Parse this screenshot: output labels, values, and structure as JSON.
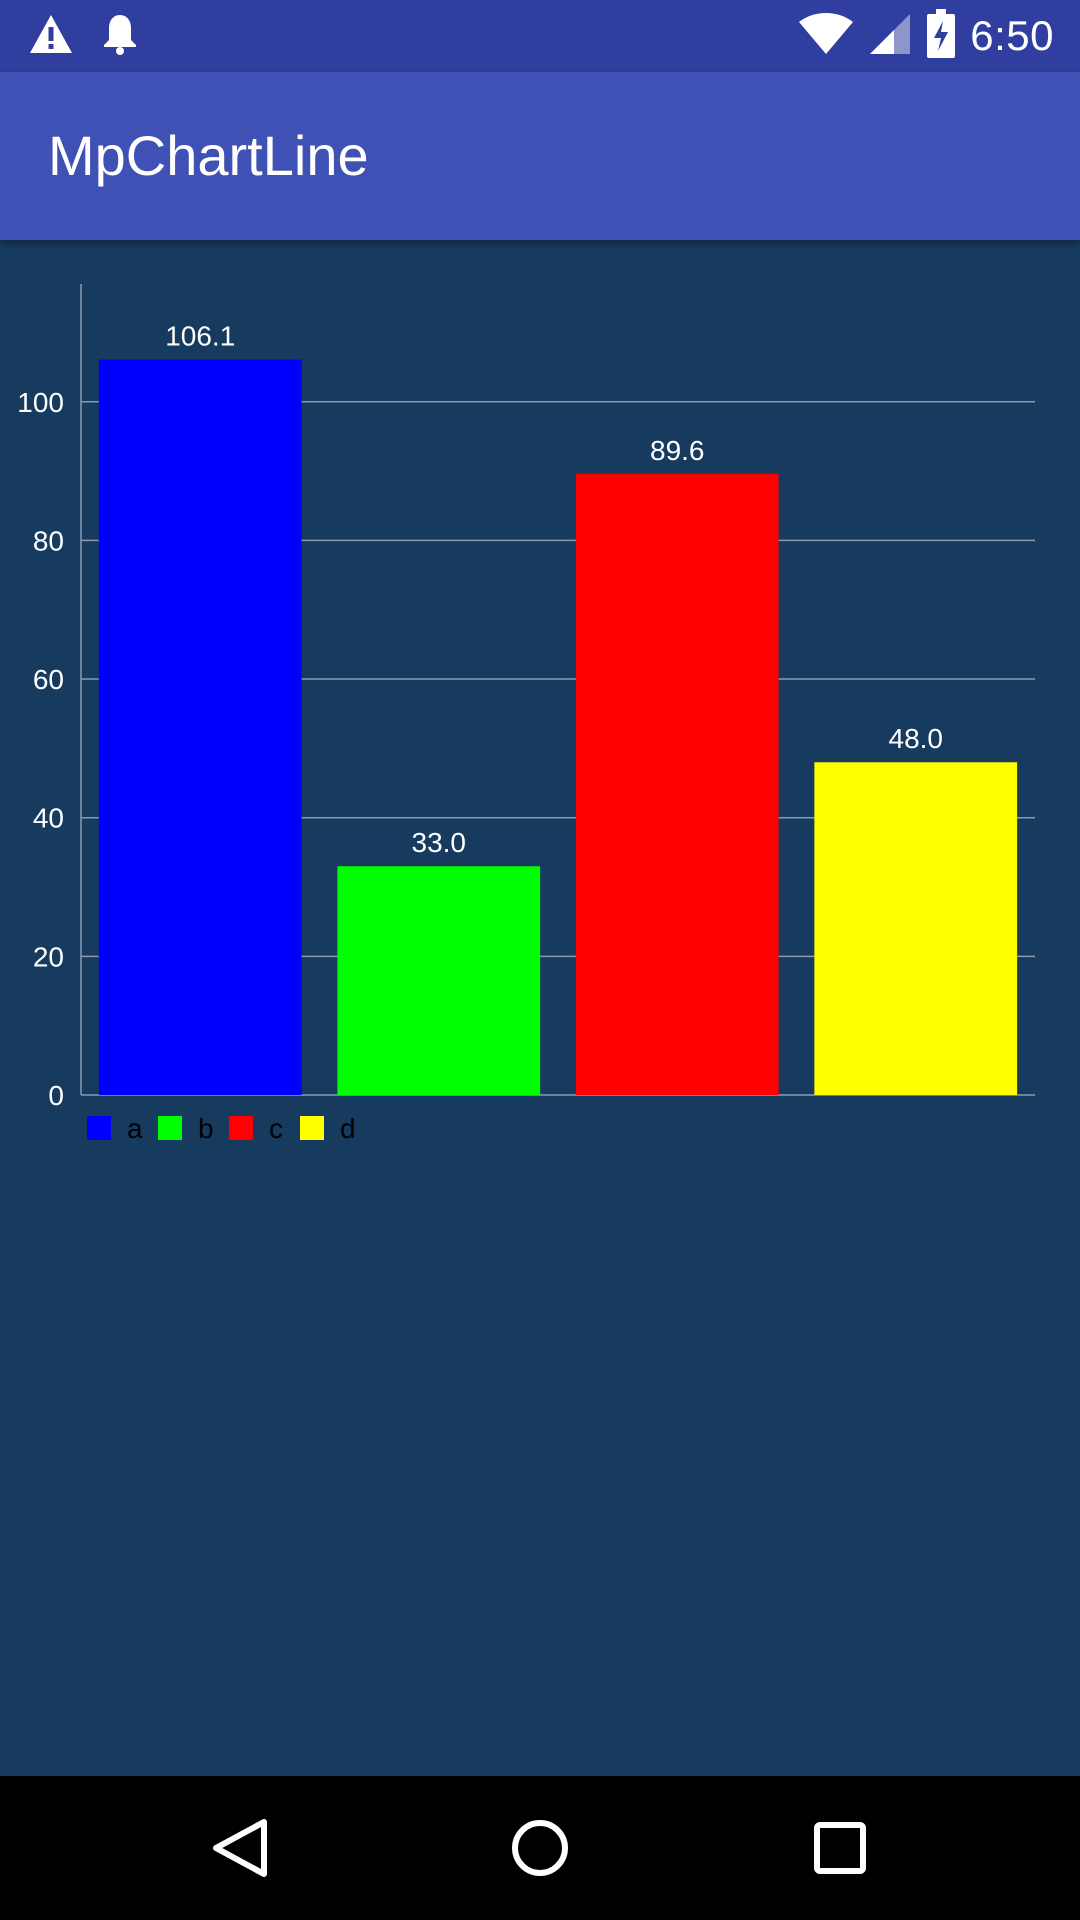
{
  "status_bar": {
    "time": "6:50",
    "left_icons": [
      "warning-icon",
      "notification-bell-icon"
    ],
    "right_icons": [
      "wifi-icon",
      "cell-signal-icon",
      "battery-charging-icon"
    ],
    "background": "#303F9F"
  },
  "app_bar": {
    "title": "MpChartLine",
    "background": "#3F51B5"
  },
  "content": {
    "background": "#173B5F"
  },
  "chart_data": {
    "type": "bar",
    "categories": [
      "a",
      "b",
      "c",
      "d"
    ],
    "values": [
      106.1,
      33.0,
      89.6,
      48.0
    ],
    "value_labels": [
      "106.1",
      "33.0",
      "89.6",
      "48.0"
    ],
    "colors": [
      "#0000FF",
      "#00FF00",
      "#FF0000",
      "#FFFF00"
    ],
    "y_ticks": [
      0,
      20,
      40,
      60,
      80,
      100
    ],
    "ylim": [
      0,
      116.7
    ],
    "grid": true,
    "legend": [
      "a",
      "b",
      "c",
      "d"
    ],
    "legend_position": "bottom-left"
  },
  "nav_bar": {
    "buttons": [
      "back-icon",
      "home-icon",
      "recents-icon"
    ]
  }
}
